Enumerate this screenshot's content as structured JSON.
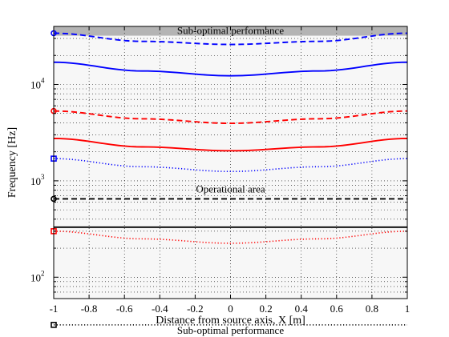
{
  "chart_data": {
    "type": "line",
    "xlabel": "Distance from source axis, X [m]",
    "ylabel": "Frequency [Hz]",
    "xlim": [
      -1,
      1
    ],
    "ylim": [
      60,
      40000
    ],
    "yscale": "log",
    "grid": "dotted",
    "xticks": [
      "-1",
      "-0.8",
      "-0.6",
      "-0.4",
      "-0.2",
      "0",
      "0.2",
      "0.4",
      "0.6",
      "0.8",
      "1"
    ],
    "yticks": [
      {
        "value": 100,
        "label": "10",
        "exp": "2"
      },
      {
        "value": 1000,
        "label": "10",
        "exp": "3"
      },
      {
        "value": 10000,
        "label": "10",
        "exp": "4"
      }
    ],
    "regions": [
      {
        "label": "Sub-optimal performance",
        "from": 32000,
        "to": 40000,
        "color": "#b4b4b4"
      },
      {
        "label": "Operational area",
        "from": 32,
        "to": 32000,
        "color": "#f7f7f7"
      },
      {
        "label": "Sub-optimal performance",
        "from": 20,
        "to": 32,
        "color": "#b4b4b4"
      }
    ],
    "series": [
      {
        "color": "#0000ff",
        "style": "dashed",
        "marker": "circle",
        "x": [
          -1,
          -0.5,
          0,
          0.5,
          1
        ],
        "y": [
          34000,
          28000,
          26000,
          28000,
          34000
        ]
      },
      {
        "color": "#0000ff",
        "style": "solid",
        "marker": "none",
        "x": [
          -1,
          -0.5,
          0,
          0.5,
          1
        ],
        "y": [
          17000,
          13800,
          12300,
          13800,
          17000
        ]
      },
      {
        "color": "#ff0000",
        "style": "dashed",
        "marker": "circle",
        "x": [
          -1,
          -0.5,
          0,
          0.5,
          1
        ],
        "y": [
          5300,
          4400,
          3950,
          4400,
          5300
        ]
      },
      {
        "color": "#ff0000",
        "style": "solid",
        "marker": "none",
        "x": [
          -1,
          -0.5,
          0,
          0.5,
          1
        ],
        "y": [
          2750,
          2250,
          2050,
          2250,
          2750
        ]
      },
      {
        "color": "#0000ff",
        "style": "dotted",
        "marker": "square",
        "x": [
          -1,
          -0.5,
          0,
          0.5,
          1
        ],
        "y": [
          1700,
          1400,
          1250,
          1400,
          1700
        ]
      },
      {
        "color": "#000000",
        "style": "dashed",
        "marker": "circle",
        "x": [
          -1,
          0,
          1
        ],
        "y": [
          650,
          650,
          650
        ]
      },
      {
        "color": "#000000",
        "style": "solid",
        "marker": "none",
        "x": [
          -1,
          0,
          1
        ],
        "y": [
          330,
          330,
          330
        ]
      },
      {
        "color": "#ff0000",
        "style": "dotted",
        "marker": "square",
        "x": [
          -1,
          -0.5,
          0,
          0.5,
          1
        ],
        "y": [
          300,
          250,
          225,
          250,
          300
        ]
      },
      {
        "color": "#000000",
        "style": "dotted",
        "marker": "square",
        "x": [
          -1,
          0,
          1
        ],
        "y": [
          32,
          32,
          32
        ]
      }
    ],
    "annotations": [
      {
        "text": "Sub-optimal performance",
        "x": 0,
        "y": 36000
      },
      {
        "text": "Operational area",
        "x": 0,
        "y": 820
      },
      {
        "text": "Sub-optimal performance",
        "x": 0,
        "y": 28
      }
    ]
  }
}
